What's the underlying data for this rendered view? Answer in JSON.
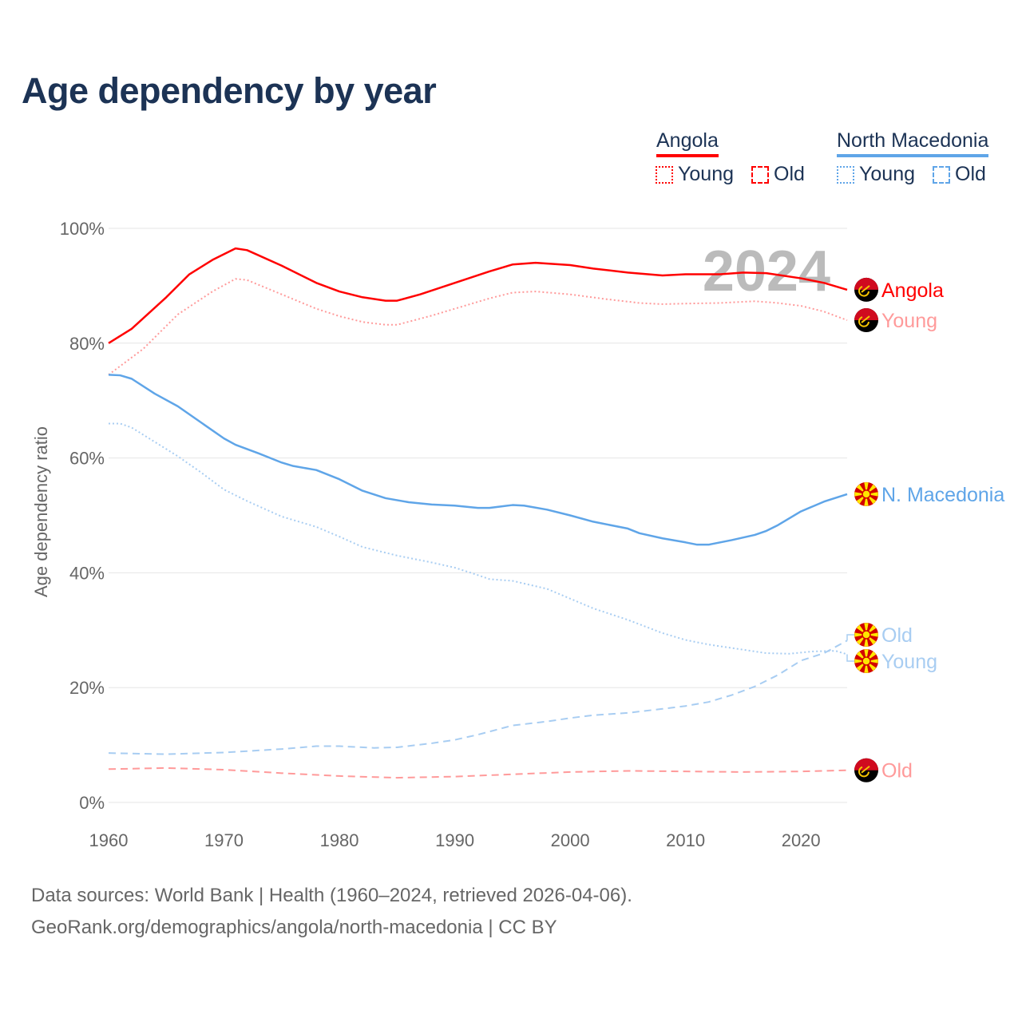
{
  "title": "Age dependency by year",
  "legend": {
    "countries": [
      {
        "name": "Angola",
        "color": "#ff0000",
        "young_label": "Young",
        "old_label": "Old"
      },
      {
        "name": "North Macedonia",
        "color": "#5fa5e8",
        "young_label": "Young",
        "old_label": "Old"
      }
    ]
  },
  "year_watermark": "2024",
  "source_line1": "Data sources: World Bank | Health (1960–2024, retrieved 2026-04-06).",
  "source_line2": "GeoRank.org/demographics/angola/north-macedonia | CC BY",
  "chart_data": {
    "type": "line",
    "title": "Age dependency by year",
    "xlabel": "",
    "ylabel": "Age dependency ratio",
    "xlim": [
      1960,
      2024
    ],
    "ylim": [
      0,
      100
    ],
    "x_ticks": [
      "1960",
      "1970",
      "1980",
      "1990",
      "2000",
      "2010",
      "2020"
    ],
    "y_ticks": [
      "0%",
      "20%",
      "40%",
      "60%",
      "80%",
      "100%"
    ],
    "grid": true,
    "series": [
      {
        "name": "Angola",
        "end_label": "Angola",
        "flag": "angola",
        "style": "solid",
        "color": "#ff0000",
        "points": [
          [
            1960,
            80
          ],
          [
            1962,
            82.5
          ],
          [
            1965,
            88
          ],
          [
            1967,
            92
          ],
          [
            1969,
            94.5
          ],
          [
            1971,
            96.5
          ],
          [
            1972,
            96.2
          ],
          [
            1975,
            93.5
          ],
          [
            1978,
            90.5
          ],
          [
            1980,
            89
          ],
          [
            1982,
            88
          ],
          [
            1984,
            87.4
          ],
          [
            1985,
            87.4
          ],
          [
            1987,
            88.5
          ],
          [
            1990,
            90.5
          ],
          [
            1993,
            92.5
          ],
          [
            1995,
            93.7
          ],
          [
            1997,
            94
          ],
          [
            2000,
            93.6
          ],
          [
            2002,
            93
          ],
          [
            2005,
            92.3
          ],
          [
            2008,
            91.8
          ],
          [
            2010,
            92
          ],
          [
            2013,
            92
          ],
          [
            2015,
            92.3
          ],
          [
            2017,
            92.2
          ],
          [
            2020,
            91.3
          ],
          [
            2022,
            90.5
          ],
          [
            2024,
            89.3
          ]
        ]
      },
      {
        "name": "Angola Young",
        "end_label": "Young",
        "flag": "angola",
        "style": "dotted",
        "color": "#ff9a9a",
        "points": [
          [
            1960,
            74.5
          ],
          [
            1963,
            79
          ],
          [
            1966,
            85
          ],
          [
            1969,
            89
          ],
          [
            1971,
            91.2
          ],
          [
            1972,
            91
          ],
          [
            1975,
            88.5
          ],
          [
            1978,
            86
          ],
          [
            1980,
            84.7
          ],
          [
            1982,
            83.7
          ],
          [
            1984,
            83.2
          ],
          [
            1985,
            83.2
          ],
          [
            1988,
            84.8
          ],
          [
            1990,
            86
          ],
          [
            1993,
            87.8
          ],
          [
            1995,
            88.8
          ],
          [
            1997,
            89
          ],
          [
            2000,
            88.5
          ],
          [
            2003,
            87.7
          ],
          [
            2006,
            87
          ],
          [
            2008,
            86.8
          ],
          [
            2010,
            86.9
          ],
          [
            2013,
            87
          ],
          [
            2016,
            87.3
          ],
          [
            2018,
            87
          ],
          [
            2020,
            86.5
          ],
          [
            2022,
            85.5
          ],
          [
            2024,
            84
          ]
        ]
      },
      {
        "name": "Angola Old",
        "end_label": "Old",
        "flag": "angola",
        "style": "dashed",
        "color": "#ff9a9a",
        "points": [
          [
            1960,
            5.8
          ],
          [
            1965,
            6.0
          ],
          [
            1970,
            5.7
          ],
          [
            1975,
            5.1
          ],
          [
            1980,
            4.6
          ],
          [
            1985,
            4.3
          ],
          [
            1990,
            4.5
          ],
          [
            1995,
            4.9
          ],
          [
            2000,
            5.3
          ],
          [
            2005,
            5.5
          ],
          [
            2010,
            5.4
          ],
          [
            2015,
            5.3
          ],
          [
            2020,
            5.4
          ],
          [
            2024,
            5.6
          ]
        ]
      },
      {
        "name": "North Macedonia",
        "end_label": "N. Macedonia",
        "flag": "macedonia",
        "style": "solid",
        "color": "#5fa5e8",
        "points": [
          [
            1960,
            74.5
          ],
          [
            1961,
            74.4
          ],
          [
            1962,
            73.8
          ],
          [
            1964,
            71.2
          ],
          [
            1966,
            69
          ],
          [
            1968,
            66.2
          ],
          [
            1970,
            63.4
          ],
          [
            1971,
            62.3
          ],
          [
            1973,
            60.8
          ],
          [
            1975,
            59.2
          ],
          [
            1976,
            58.6
          ],
          [
            1978,
            57.9
          ],
          [
            1980,
            56.3
          ],
          [
            1982,
            54.3
          ],
          [
            1984,
            53
          ],
          [
            1986,
            52.3
          ],
          [
            1988,
            51.9
          ],
          [
            1990,
            51.7
          ],
          [
            1992,
            51.3
          ],
          [
            1993,
            51.3
          ],
          [
            1995,
            51.8
          ],
          [
            1996,
            51.7
          ],
          [
            1998,
            51
          ],
          [
            2000,
            50
          ],
          [
            2002,
            48.9
          ],
          [
            2005,
            47.7
          ],
          [
            2006,
            46.9
          ],
          [
            2008,
            46
          ],
          [
            2010,
            45.3
          ],
          [
            2011,
            44.9
          ],
          [
            2012,
            44.9
          ],
          [
            2014,
            45.7
          ],
          [
            2016,
            46.6
          ],
          [
            2017,
            47.3
          ],
          [
            2018,
            48.3
          ],
          [
            2020,
            50.7
          ],
          [
            2022,
            52.4
          ],
          [
            2024,
            53.7
          ]
        ]
      },
      {
        "name": "North Macedonia Young",
        "end_label": "Young",
        "flag": "macedonia",
        "style": "dotted",
        "color": "#a8cdf2",
        "points": [
          [
            1960,
            66
          ],
          [
            1961,
            66
          ],
          [
            1962,
            65.3
          ],
          [
            1964,
            62.8
          ],
          [
            1966,
            60.3
          ],
          [
            1968,
            57.5
          ],
          [
            1970,
            54.5
          ],
          [
            1972,
            52.5
          ],
          [
            1975,
            49.8
          ],
          [
            1978,
            48
          ],
          [
            1980,
            46.3
          ],
          [
            1982,
            44.5
          ],
          [
            1985,
            43
          ],
          [
            1988,
            41.8
          ],
          [
            1990,
            40.9
          ],
          [
            1992,
            39.6
          ],
          [
            1993,
            38.9
          ],
          [
            1995,
            38.6
          ],
          [
            1998,
            37.2
          ],
          [
            2000,
            35.5
          ],
          [
            2002,
            33.8
          ],
          [
            2005,
            31.8
          ],
          [
            2008,
            29.5
          ],
          [
            2010,
            28.3
          ],
          [
            2012,
            27.5
          ],
          [
            2015,
            26.6
          ],
          [
            2017,
            26
          ],
          [
            2019,
            25.9
          ],
          [
            2021,
            26.3
          ],
          [
            2023,
            26.4
          ],
          [
            2024,
            25.8
          ]
        ]
      },
      {
        "name": "North Macedonia Old",
        "end_label": "Old",
        "flag": "macedonia",
        "style": "dashed",
        "color": "#a8cdf2",
        "points": [
          [
            1960,
            8.6
          ],
          [
            1965,
            8.4
          ],
          [
            1970,
            8.7
          ],
          [
            1975,
            9.3
          ],
          [
            1978,
            9.8
          ],
          [
            1980,
            9.8
          ],
          [
            1983,
            9.5
          ],
          [
            1985,
            9.6
          ],
          [
            1988,
            10.3
          ],
          [
            1990,
            10.9
          ],
          [
            1992,
            11.8
          ],
          [
            1995,
            13.4
          ],
          [
            1998,
            14.1
          ],
          [
            2000,
            14.7
          ],
          [
            2002,
            15.2
          ],
          [
            2005,
            15.6
          ],
          [
            2008,
            16.3
          ],
          [
            2010,
            16.8
          ],
          [
            2012,
            17.5
          ],
          [
            2014,
            18.7
          ],
          [
            2016,
            20.2
          ],
          [
            2018,
            22.2
          ],
          [
            2020,
            24.7
          ],
          [
            2022,
            26
          ],
          [
            2024,
            28.2
          ]
        ]
      }
    ]
  }
}
